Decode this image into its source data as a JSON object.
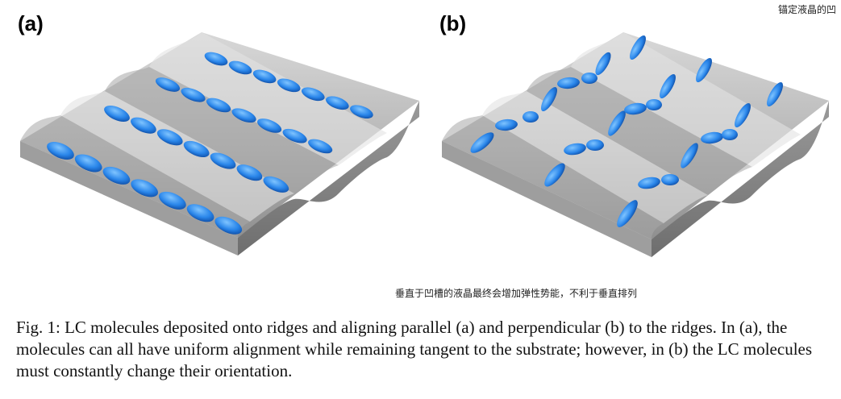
{
  "figure": {
    "panel_a_label": "(a)",
    "panel_b_label": "(b)",
    "annotation_top": "锚定液晶的凹",
    "annotation_bottom": "垂直于凹槽的液晶最终会增加弹性势能，不利于垂直排列",
    "caption": "Fig. 1: LC molecules deposited onto ridges and aligning parallel (a) and perpendicular (b) to the ridges. In (a), the molecules can all have uniform alignment while remaining tangent to the substrate; however, in (b) the LC molecules must constantly change their orientation."
  },
  "colors": {
    "background": "#ffffff",
    "substrate_light": "#c9c9c9",
    "substrate_dark": "#8a8a8a",
    "molecule": "#1e7ae0",
    "molecule_highlight": "#6fb8ff"
  }
}
